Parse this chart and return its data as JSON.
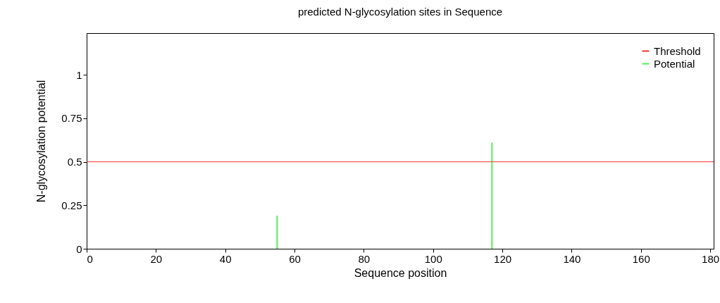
{
  "chart_data": {
    "type": "bar",
    "title": "predicted N-glycosylation sites in Sequence",
    "xlabel": "Sequence position",
    "ylabel": "N-glycosylation potential",
    "x": [
      55,
      117
    ],
    "series": [
      {
        "name": "Potential",
        "color": "#55ee55",
        "values": [
          0.19,
          0.61
        ]
      }
    ],
    "ref_lines": [
      {
        "axis": "y",
        "value": 0.5,
        "label": "Threshold",
        "color": "#ee3333"
      }
    ],
    "xlim": [
      0,
      181
    ],
    "xticks": [
      0,
      20,
      40,
      60,
      80,
      100,
      120,
      140,
      160,
      180
    ],
    "ylim": [
      0,
      1.24
    ],
    "yticks": [
      0,
      0.25,
      0.5,
      0.75,
      1
    ],
    "grid": false,
    "legend": "top right"
  }
}
